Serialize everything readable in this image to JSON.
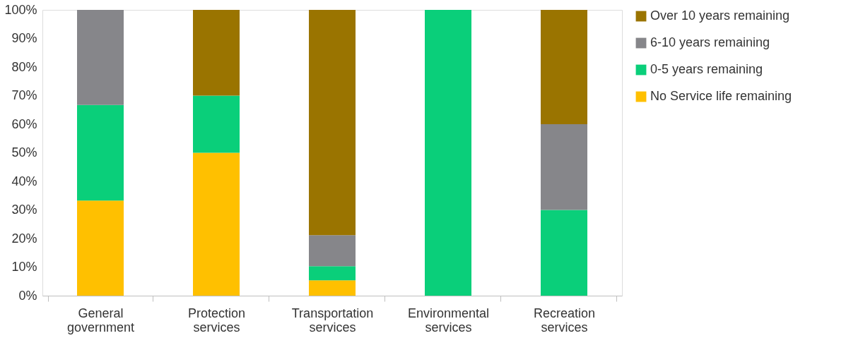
{
  "chart_data": {
    "type": "bar",
    "stacked": true,
    "categories": [
      "General government",
      "Protection services",
      "Transportation services",
      "Environmental services",
      "Recreation services"
    ],
    "series": [
      {
        "name": "No Service life remaining",
        "color": "#ffc000",
        "values": [
          33.3,
          50,
          5.4,
          0,
          0
        ]
      },
      {
        "name": "0-5 years remaining",
        "color": "#0acf7a",
        "values": [
          33.4,
          20,
          4.9,
          100,
          30
        ]
      },
      {
        "name": "6-10 years remaining",
        "color": "#86868a",
        "values": [
          33.3,
          0,
          10.9,
          0,
          30
        ]
      },
      {
        "name": "Over 10 years remaining",
        "color": "#9a7400",
        "values": [
          0,
          30,
          78.8,
          0,
          40
        ]
      }
    ],
    "ylim": [
      0,
      100
    ],
    "yticks": [
      {
        "value": 0,
        "label": "0%"
      },
      {
        "value": 10,
        "label": "10%"
      },
      {
        "value": 20,
        "label": "20%"
      },
      {
        "value": 30,
        "label": "30%"
      },
      {
        "value": 40,
        "label": "40%"
      },
      {
        "value": 50,
        "label": "50%"
      },
      {
        "value": 60,
        "label": "60%"
      },
      {
        "value": 70,
        "label": "70%"
      },
      {
        "value": 80,
        "label": "80%"
      },
      {
        "value": 90,
        "label": "90%"
      },
      {
        "value": 100,
        "label": "100%"
      }
    ],
    "grid": false,
    "legend": "right"
  }
}
